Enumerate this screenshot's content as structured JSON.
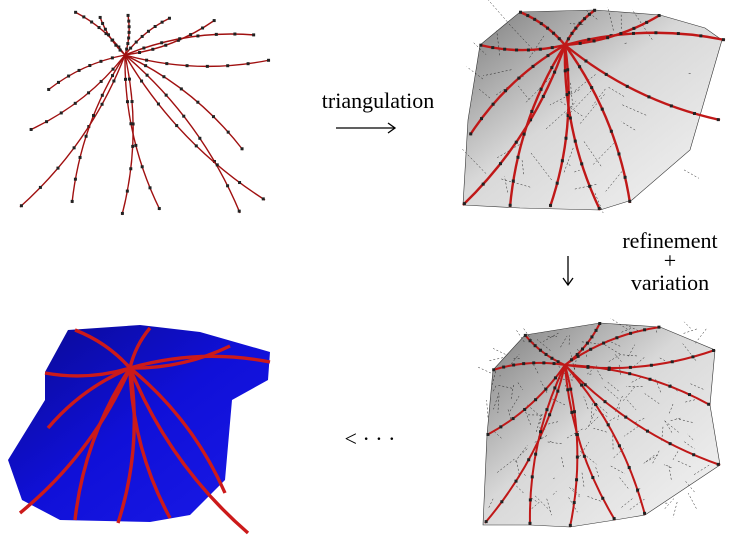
{
  "labels": {
    "triangulation": "triangulation",
    "refinement": "refinement",
    "plus": "+",
    "variation": "variation",
    "ellipsis": "< · · ·"
  }
}
